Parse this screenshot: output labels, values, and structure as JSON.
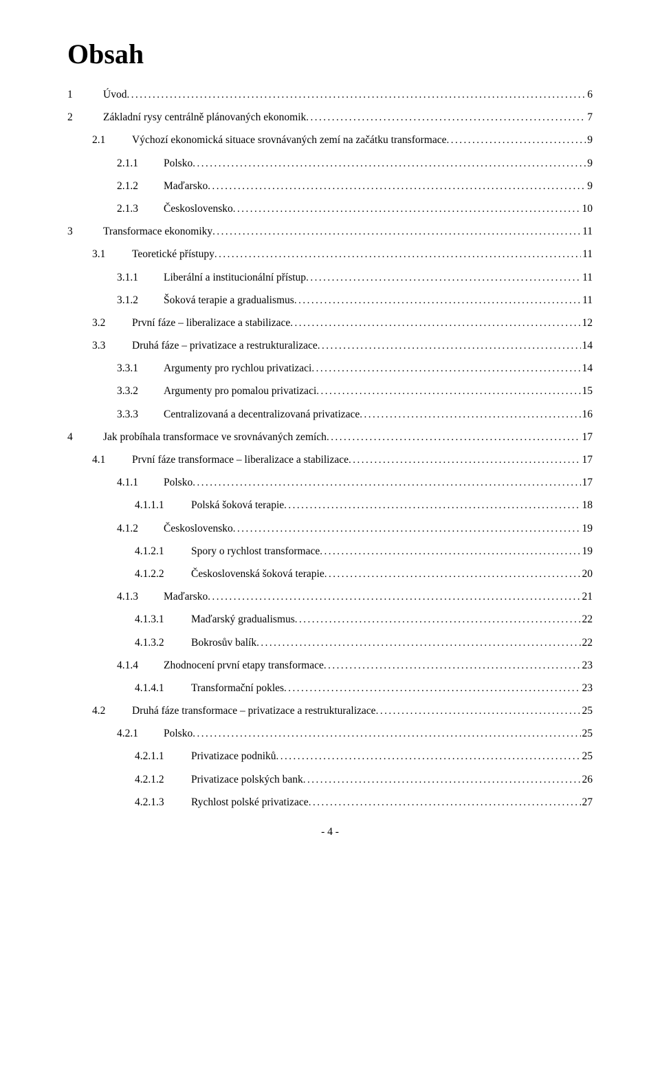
{
  "title": "Obsah",
  "footer": "- 4 -",
  "dot_char": ".",
  "toc": [
    {
      "level": "l1",
      "num": "1",
      "label": "Úvod",
      "page": "6"
    },
    {
      "level": "l1",
      "num": "2",
      "label": "Základní rysy centrálně plánovaných ekonomik",
      "page": "7"
    },
    {
      "level": "l2",
      "num": "2.1",
      "label": "Výchozí ekonomická situace srovnávaných zemí na začátku transformace",
      "page": "9"
    },
    {
      "level": "l3",
      "num": "2.1.1",
      "label": "Polsko",
      "page": "9"
    },
    {
      "level": "l3",
      "num": "2.1.2",
      "label": "Maďarsko",
      "page": "9"
    },
    {
      "level": "l3",
      "num": "2.1.3",
      "label": "Československo",
      "page": "10"
    },
    {
      "level": "l1",
      "num": "3",
      "label": "Transformace ekonomiky",
      "page": "11"
    },
    {
      "level": "l2",
      "num": "3.1",
      "label": "Teoretické přístupy",
      "page": "11"
    },
    {
      "level": "l3",
      "num": "3.1.1",
      "label": "Liberální a institucionální přístup",
      "page": "11"
    },
    {
      "level": "l3",
      "num": "3.1.2",
      "label": "Šoková terapie a gradualismus",
      "page": "11"
    },
    {
      "level": "l2",
      "num": "3.2",
      "label": "První fáze – liberalizace a stabilizace",
      "page": "12"
    },
    {
      "level": "l2",
      "num": "3.3",
      "label": "Druhá fáze – privatizace a restrukturalizace",
      "page": "14"
    },
    {
      "level": "l3",
      "num": "3.3.1",
      "label": "Argumenty pro rychlou privatizaci",
      "page": "14"
    },
    {
      "level": "l3",
      "num": "3.3.2",
      "label": "Argumenty pro pomalou privatizaci",
      "page": "15"
    },
    {
      "level": "l3",
      "num": "3.3.3",
      "label": "Centralizovaná a decentralizovaná privatizace",
      "page": "16"
    },
    {
      "level": "l1",
      "num": "4",
      "label": "Jak probíhala transformace ve srovnávaných zemích",
      "page": "17"
    },
    {
      "level": "l2",
      "num": "4.1",
      "label": "První fáze transformace – liberalizace a stabilizace",
      "page": "17"
    },
    {
      "level": "l3",
      "num": "4.1.1",
      "label": "Polsko",
      "page": "17"
    },
    {
      "level": "l4",
      "num": "4.1.1.1",
      "label": "Polská šoková terapie",
      "page": "18"
    },
    {
      "level": "l3",
      "num": "4.1.2",
      "label": "Československo",
      "page": "19"
    },
    {
      "level": "l4",
      "num": "4.1.2.1",
      "label": "Spory o rychlost transformace",
      "page": "19"
    },
    {
      "level": "l4",
      "num": "4.1.2.2",
      "label": "Československá šoková terapie",
      "page": "20"
    },
    {
      "level": "l3",
      "num": "4.1.3",
      "label": "Maďarsko",
      "page": "21"
    },
    {
      "level": "l4",
      "num": "4.1.3.1",
      "label": "Maďarský gradualismus",
      "page": "22"
    },
    {
      "level": "l4",
      "num": "4.1.3.2",
      "label": "Bokrosův balík",
      "page": "22"
    },
    {
      "level": "l3",
      "num": "4.1.4",
      "label": "Zhodnocení první etapy transformace",
      "page": "23"
    },
    {
      "level": "l4",
      "num": "4.1.4.1",
      "label": "Transformační pokles",
      "page": "23"
    },
    {
      "level": "l2",
      "num": "4.2",
      "label": "Druhá fáze transformace – privatizace a restrukturalizace",
      "page": "25"
    },
    {
      "level": "l3",
      "num": "4.2.1",
      "label": "Polsko",
      "page": "25"
    },
    {
      "level": "l4",
      "num": "4.2.1.1",
      "label": "Privatizace podniků",
      "page": "25"
    },
    {
      "level": "l4",
      "num": "4.2.1.2",
      "label": "Privatizace polských bank",
      "page": "26"
    },
    {
      "level": "l4",
      "num": "4.2.1.3",
      "label": "Rychlost polské privatizace",
      "page": "27"
    }
  ]
}
